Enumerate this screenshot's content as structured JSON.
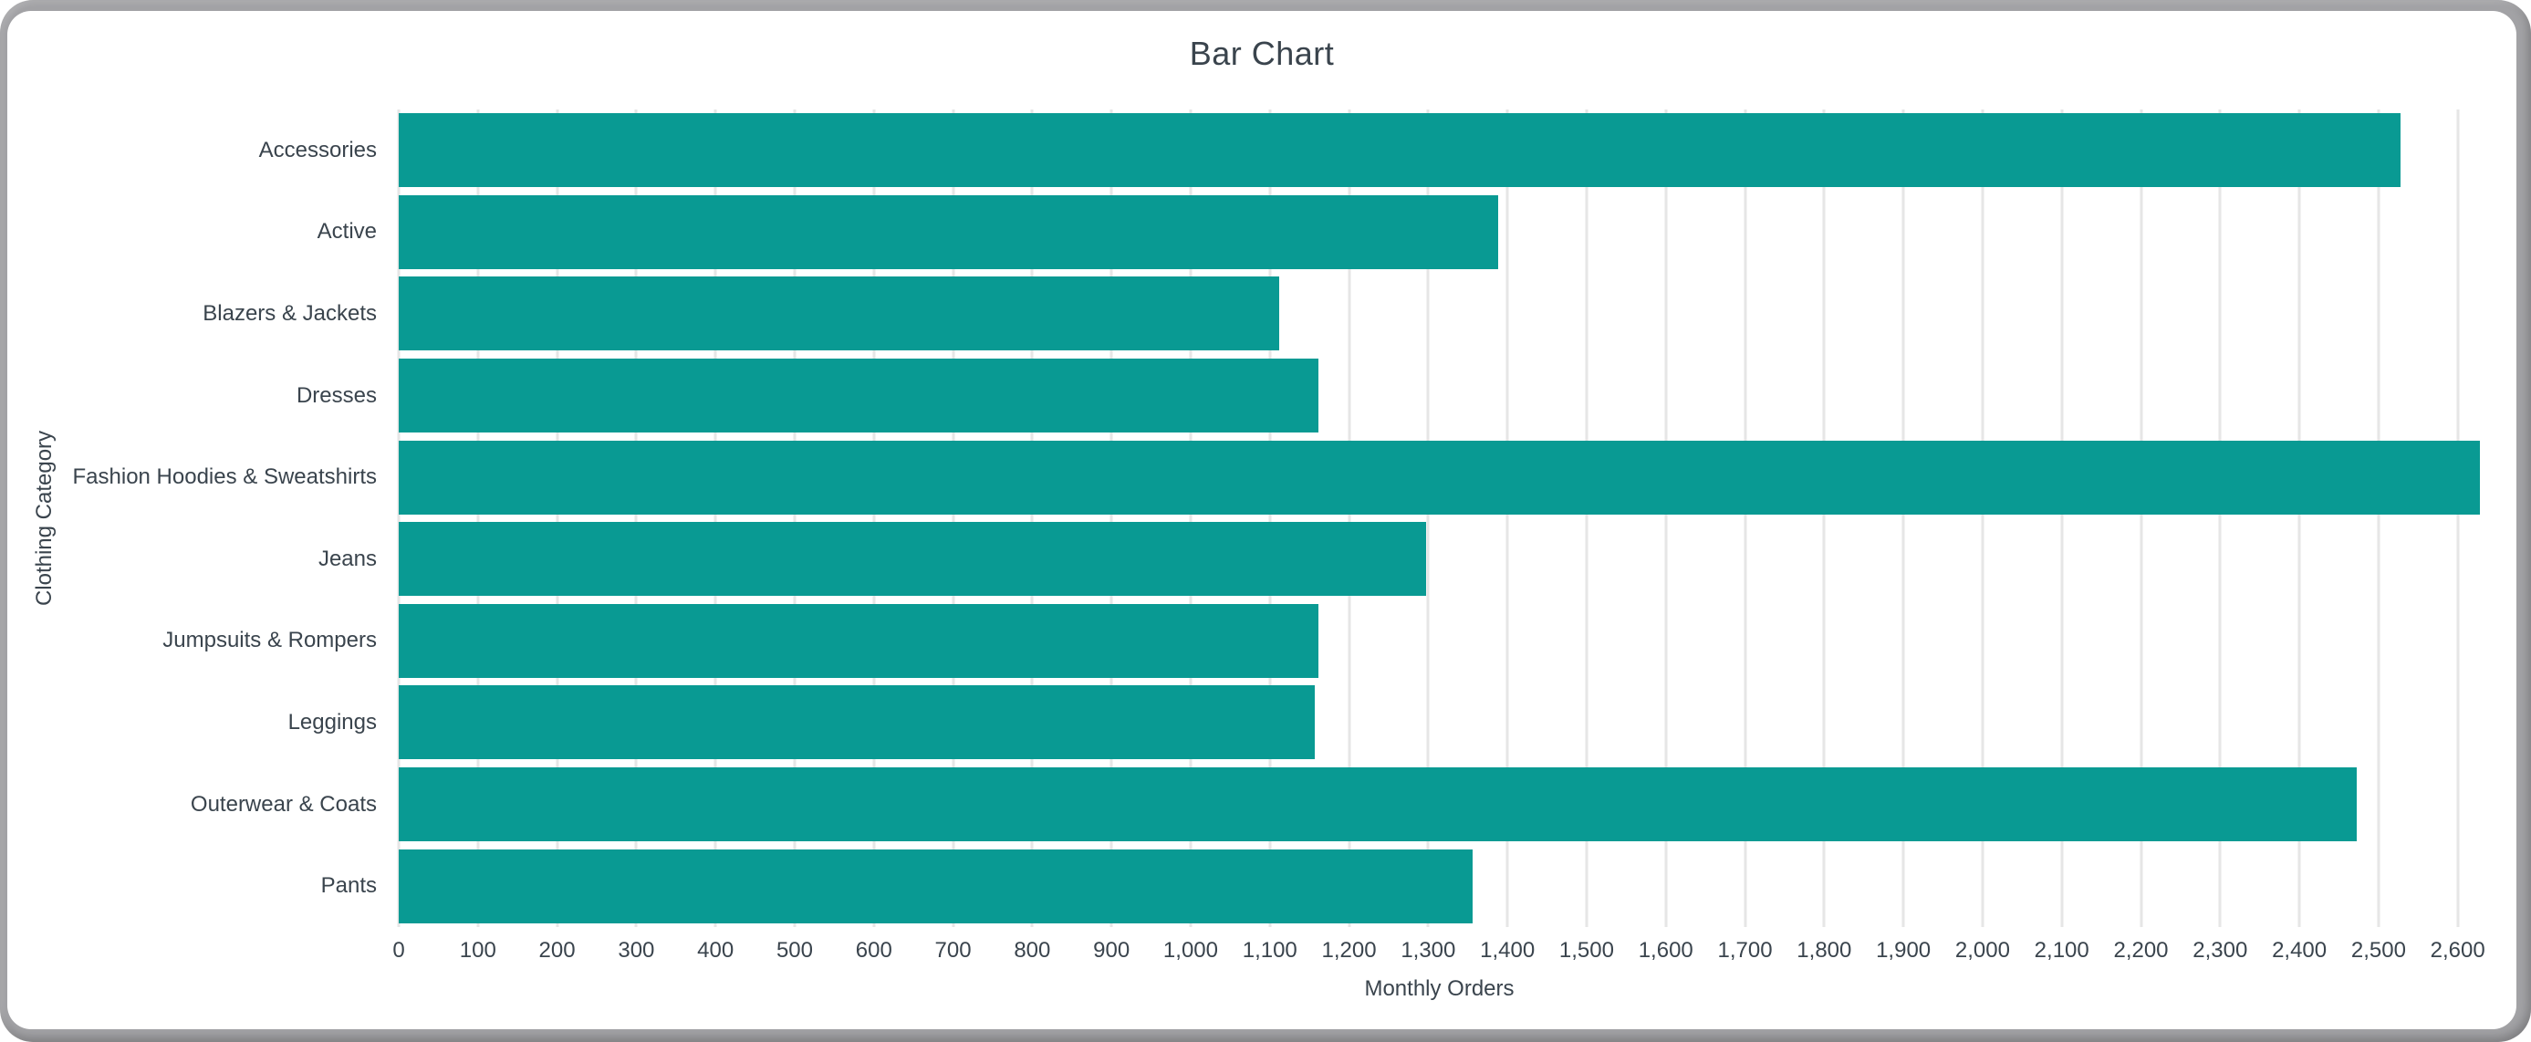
{
  "window": {
    "frame_color": "#a2a2a5",
    "canvas_color": "#ffffff"
  },
  "chart_data": {
    "type": "bar",
    "orientation": "horizontal",
    "title": "Bar Chart",
    "xlabel": "Monthly Orders",
    "ylabel": "Clothing Category",
    "categories": [
      "Accessories",
      "Active",
      "Blazers & Jackets",
      "Dresses",
      "Fashion Hoodies & Sweatshirts",
      "Jeans",
      "Jumpsuits & Rompers",
      "Leggings",
      "Outerwear & Coats",
      "Pants"
    ],
    "values": [
      2528,
      1388,
      1112,
      1161,
      2628,
      1297,
      1161,
      1157,
      2472,
      1356
    ],
    "xlim": [
      0,
      2628
    ],
    "x_tick_interval": 100,
    "x_tick_max": 2600,
    "grid": true,
    "legend": "none",
    "bar_color": "#099a93",
    "gridline_color": "#e6e6e6",
    "text_color": "#3a444d"
  }
}
